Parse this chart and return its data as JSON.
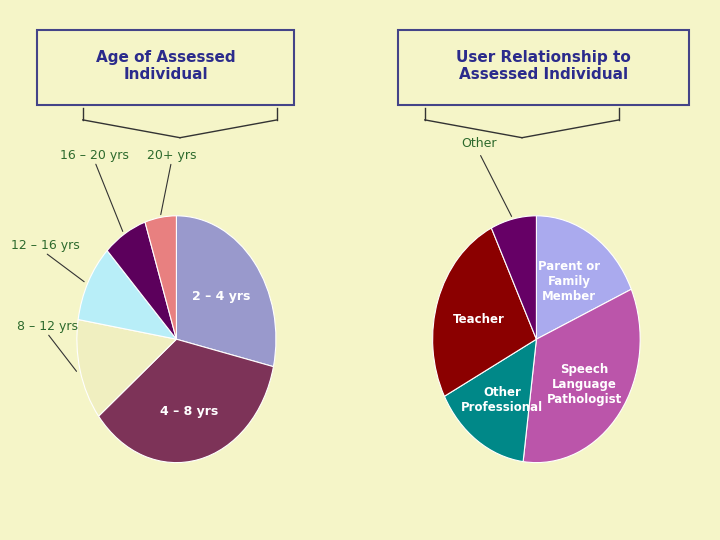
{
  "bg_color": "#f5f5c8",
  "title1": "Age of Assessed\nIndividual",
  "title2": "User Relationship to\nAssessed Individual",
  "title_color": "#2b2b8c",
  "title_fontsize": 11,
  "pie1_labels": [
    "2 – 4 yrs",
    "4 – 8 yrs",
    "8 – 12 yrs",
    "12 – 16 yrs",
    "16 – 20 yrs",
    "20+ yrs"
  ],
  "pie1_sizes": [
    28,
    35,
    13,
    10,
    7,
    5
  ],
  "pie1_colors": [
    "#9999cc",
    "#7d3358",
    "#f0efc0",
    "#b8eef8",
    "#5c005c",
    "#e88080"
  ],
  "pie1_label_colors_inside": [
    "white",
    "white"
  ],
  "pie1_label_colors_outside": [
    "#2d6a2d",
    "#2d6a2d",
    "#2d6a2d",
    "#2d6a2d"
  ],
  "pie2_labels": [
    "Parent or\nFamily\nMember",
    "Speech\nLanguage\nPathologist",
    "Other\nProfessional",
    "Teacher",
    "Other"
  ],
  "pie2_sizes": [
    18,
    33,
    15,
    25,
    7
  ],
  "pie2_colors": [
    "#aaaaee",
    "#bb55aa",
    "#008888",
    "#8b0000",
    "#660066"
  ],
  "pie2_label_colors_inside": [
    "white",
    "white",
    "white",
    "white"
  ],
  "pie2_label_colors_outside": [
    "#2d6a2d"
  ],
  "line_color": "#333333",
  "label_fontsize": 9,
  "box_edgecolor": "#444488"
}
